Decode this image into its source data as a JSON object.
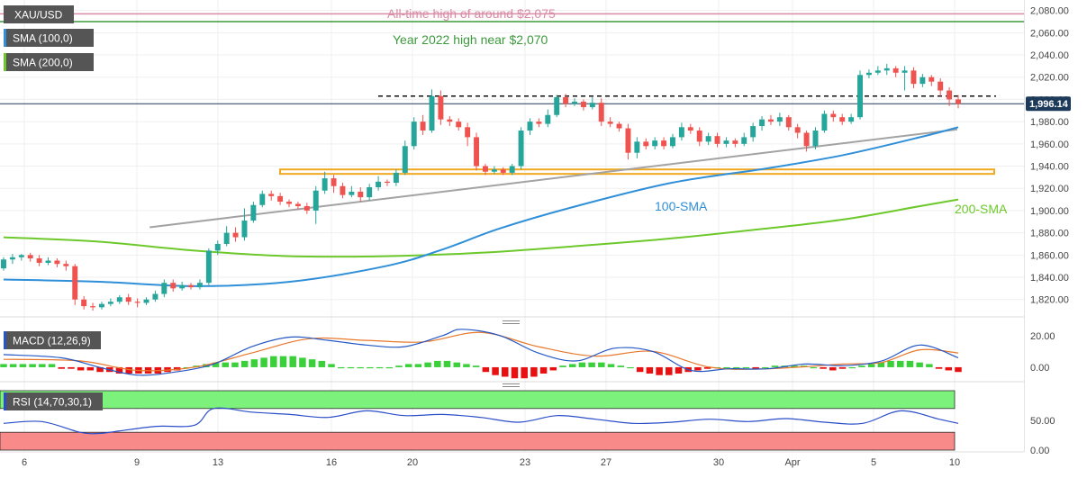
{
  "colors": {
    "up": "#26a69a",
    "down": "#ef5350",
    "sma100": "#2f8fd8",
    "sma200": "#6dc92b",
    "ath_line": "#d98aa5",
    "year_high_line": "#3c9a3c",
    "trendline": "#a3a3a3",
    "support_zone": "#f0a820",
    "macd_line": "#2457c5",
    "signal_line": "#e8782b",
    "hist_pos": "#3ad03a",
    "hist_neg": "#e81010",
    "rsi_line": "#2a4dc8",
    "rsi_overbought": "#7cf27c",
    "rsi_oversold": "#f98a8a",
    "price_badge": "#1e3a5a"
  },
  "labels": {
    "symbol": "XAU/USD",
    "sma100_legend": "SMA (100,0)",
    "sma200_legend": "SMA (200,0)",
    "macd_legend": "MACD (12,26,9)",
    "rsi_legend": "RSI (14,70,30,1)",
    "ath_note": "All-time high of around $2,075",
    "year_high_note": "Year 2022 high near $2,070",
    "sma100_note": "100-SMA",
    "sma200_note": "200-SMA",
    "last_price": "1,996.14"
  },
  "chart_data": [
    {
      "type": "candlestick",
      "symbol": "XAU/USD",
      "x_tick_labels": [
        "6",
        "9",
        "13",
        "16",
        "20",
        "23",
        "27",
        "30",
        "Apr",
        "5",
        "10"
      ],
      "y_ticks": [
        "2,080.00",
        "2,060.00",
        "2,040.00",
        "2,020.00",
        "2,000.00",
        "1,980.00",
        "1,960.00",
        "1,940.00",
        "1,920.00",
        "1,900.00",
        "1,880.00",
        "1,860.00",
        "1,840.00",
        "1,820.00"
      ],
      "ylim": [
        1806,
        2087
      ],
      "last_price": 1996.14,
      "horizontal_lines": [
        {
          "label": "All-time high of around $2,075",
          "value": 2077
        },
        {
          "label": "Year 2022 high near $2,070",
          "value": 2070
        }
      ],
      "resistance_level": 2003,
      "support_zone": [
        1933,
        1937
      ],
      "trendline": {
        "from": [
          15.3,
          1885
        ],
        "to": [
          99.9,
          1973
        ]
      },
      "candles": [
        [
          1848,
          1856,
          1846,
          1858
        ],
        [
          1856,
          1858,
          1852,
          1861
        ],
        [
          1858,
          1860,
          1855,
          1861
        ],
        [
          1860,
          1857,
          1854,
          1862
        ],
        [
          1857,
          1853,
          1850,
          1860
        ],
        [
          1853,
          1855,
          1851,
          1858
        ],
        [
          1855,
          1852,
          1849,
          1857
        ],
        [
          1852,
          1850,
          1846,
          1855
        ],
        [
          1850,
          1820,
          1815,
          1852
        ],
        [
          1820,
          1814,
          1811,
          1823
        ],
        [
          1814,
          1813,
          1810,
          1817
        ],
        [
          1813,
          1816,
          1811,
          1818
        ],
        [
          1816,
          1818,
          1814,
          1821
        ],
        [
          1818,
          1822,
          1816,
          1824
        ],
        [
          1822,
          1818,
          1815,
          1825
        ],
        [
          1818,
          1817,
          1813,
          1821
        ],
        [
          1817,
          1820,
          1815,
          1822
        ],
        [
          1820,
          1825,
          1818,
          1828
        ],
        [
          1825,
          1835,
          1822,
          1838
        ],
        [
          1835,
          1830,
          1827,
          1838
        ],
        [
          1830,
          1833,
          1828,
          1836
        ],
        [
          1833,
          1831,
          1829,
          1835
        ],
        [
          1831,
          1835,
          1829,
          1838
        ],
        [
          1835,
          1864,
          1833,
          1866
        ],
        [
          1864,
          1870,
          1860,
          1873
        ],
        [
          1870,
          1880,
          1868,
          1886
        ],
        [
          1880,
          1876,
          1872,
          1885
        ],
        [
          1876,
          1891,
          1873,
          1902
        ],
        [
          1891,
          1905,
          1889,
          1908
        ],
        [
          1905,
          1915,
          1903,
          1918
        ],
        [
          1915,
          1913,
          1909,
          1918
        ],
        [
          1913,
          1908,
          1905,
          1916
        ],
        [
          1908,
          1906,
          1903,
          1910
        ],
        [
          1906,
          1904,
          1901,
          1908
        ],
        [
          1904,
          1900,
          1897,
          1907
        ],
        [
          1900,
          1918,
          1888,
          1922
        ],
        [
          1918,
          1929,
          1915,
          1935
        ],
        [
          1929,
          1922,
          1916,
          1932
        ],
        [
          1922,
          1914,
          1911,
          1925
        ],
        [
          1914,
          1917,
          1912,
          1922
        ],
        [
          1917,
          1912,
          1908,
          1921
        ],
        [
          1912,
          1921,
          1909,
          1924
        ],
        [
          1921,
          1926,
          1918,
          1931
        ],
        [
          1926,
          1925,
          1922,
          1928
        ],
        [
          1925,
          1934,
          1922,
          1937
        ],
        [
          1934,
          1958,
          1932,
          1963
        ],
        [
          1958,
          1980,
          1955,
          1984
        ],
        [
          1980,
          1972,
          1968,
          1986
        ],
        [
          1972,
          2003,
          1970,
          2009
        ],
        [
          2003,
          1982,
          1977,
          2008
        ],
        [
          1982,
          1980,
          1976,
          1985
        ],
        [
          1980,
          1975,
          1972,
          1983
        ],
        [
          1975,
          1966,
          1958,
          1979
        ],
        [
          1966,
          1940,
          1936,
          1970
        ],
        [
          1940,
          1935,
          1932,
          1942
        ],
        [
          1935,
          1937,
          1933,
          1940
        ],
        [
          1937,
          1934,
          1932,
          1939
        ],
        [
          1934,
          1940,
          1932,
          1942
        ],
        [
          1940,
          1972,
          1937,
          1975
        ],
        [
          1972,
          1980,
          1968,
          1983
        ],
        [
          1980,
          1978,
          1975,
          1983
        ],
        [
          1978,
          1986,
          1975,
          1991
        ],
        [
          1986,
          2002,
          1984,
          2004
        ],
        [
          2002,
          1996,
          1993,
          2005
        ],
        [
          1996,
          1998,
          1994,
          2001
        ],
        [
          1998,
          1993,
          1990,
          2000
        ],
        [
          1993,
          1997,
          1991,
          2002
        ],
        [
          1997,
          1980,
          1976,
          2001
        ],
        [
          1980,
          1978,
          1975,
          1984
        ],
        [
          1978,
          1974,
          1971,
          1980
        ],
        [
          1974,
          1952,
          1946,
          1978
        ],
        [
          1952,
          1962,
          1947,
          1966
        ],
        [
          1962,
          1958,
          1955,
          1965
        ],
        [
          1958,
          1963,
          1955,
          1966
        ],
        [
          1963,
          1958,
          1955,
          1966
        ],
        [
          1958,
          1966,
          1956,
          1969
        ],
        [
          1966,
          1975,
          1963,
          1979
        ],
        [
          1975,
          1972,
          1969,
          1978
        ],
        [
          1972,
          1962,
          1958,
          1975
        ],
        [
          1962,
          1967,
          1959,
          1970
        ],
        [
          1967,
          1960,
          1957,
          1970
        ],
        [
          1960,
          1963,
          1957,
          1966
        ],
        [
          1963,
          1960,
          1957,
          1965
        ],
        [
          1960,
          1966,
          1958,
          1970
        ],
        [
          1966,
          1976,
          1962,
          1979
        ],
        [
          1976,
          1982,
          1972,
          1985
        ],
        [
          1982,
          1980,
          1977,
          1986
        ],
        [
          1980,
          1984,
          1976,
          1988
        ],
        [
          1984,
          1975,
          1972,
          1986
        ],
        [
          1975,
          1970,
          1965,
          1978
        ],
        [
          1970,
          1958,
          1953,
          1972
        ],
        [
          1958,
          1972,
          1955,
          1975
        ],
        [
          1972,
          1987,
          1970,
          1990
        ],
        [
          1987,
          1984,
          1980,
          1990
        ],
        [
          1984,
          1980,
          1977,
          1987
        ],
        [
          1980,
          1984,
          1978,
          1987
        ],
        [
          1984,
          2022,
          1982,
          2026
        ],
        [
          2022,
          2024,
          2019,
          2027
        ],
        [
          2024,
          2026,
          2022,
          2030
        ],
        [
          2026,
          2028,
          2022,
          2032
        ],
        [
          2028,
          2024,
          2020,
          2030
        ],
        [
          2024,
          2026,
          2008,
          2030
        ],
        [
          2026,
          2014,
          2010,
          2029
        ],
        [
          2014,
          2020,
          2011,
          2023
        ],
        [
          2020,
          2016,
          2012,
          2022
        ],
        [
          2016,
          2008,
          2003,
          2019
        ],
        [
          2008,
          2000,
          1994,
          2011
        ],
        [
          2000,
          1996,
          1992,
          2004
        ]
      ],
      "sma100": [
        [
          0,
          1838
        ],
        [
          10,
          1836
        ],
        [
          20,
          1832
        ],
        [
          30,
          1836
        ],
        [
          40,
          1850
        ],
        [
          46,
          1865
        ],
        [
          52,
          1884
        ],
        [
          60,
          1904
        ],
        [
          70,
          1925
        ],
        [
          80,
          1938
        ],
        [
          88,
          1950
        ],
        [
          96,
          1966
        ],
        [
          100,
          1975
        ]
      ],
      "sma200": [
        [
          0,
          1876
        ],
        [
          10,
          1872
        ],
        [
          20,
          1864
        ],
        [
          30,
          1859
        ],
        [
          40,
          1859
        ],
        [
          50,
          1862
        ],
        [
          60,
          1868
        ],
        [
          70,
          1875
        ],
        [
          80,
          1884
        ],
        [
          88,
          1892
        ],
        [
          96,
          1904
        ],
        [
          100,
          1910
        ]
      ],
      "annotations": [
        "All-time high of around $2,075",
        "Year 2022 high near $2,070",
        "100-SMA",
        "200-SMA"
      ]
    },
    {
      "type": "macd",
      "name": "MACD (12,26,9)",
      "y_ticks": [
        "20.00",
        "0.00"
      ],
      "ylim": [
        -8,
        25
      ],
      "macd": [
        [
          0,
          8
        ],
        [
          6,
          6
        ],
        [
          10,
          0
        ],
        [
          14,
          -5
        ],
        [
          18,
          -3
        ],
        [
          22,
          2
        ],
        [
          26,
          13
        ],
        [
          30,
          19
        ],
        [
          34,
          17
        ],
        [
          38,
          14
        ],
        [
          42,
          13
        ],
        [
          46,
          20
        ],
        [
          48,
          24
        ],
        [
          52,
          20
        ],
        [
          56,
          9
        ],
        [
          60,
          4
        ],
        [
          64,
          12
        ],
        [
          68,
          10
        ],
        [
          72,
          -2
        ],
        [
          76,
          -1
        ],
        [
          80,
          -1
        ],
        [
          84,
          2
        ],
        [
          88,
          1
        ],
        [
          92,
          4
        ],
        [
          96,
          14
        ],
        [
          100,
          6
        ]
      ],
      "signal": [
        [
          0,
          5
        ],
        [
          8,
          4
        ],
        [
          14,
          -2
        ],
        [
          20,
          0
        ],
        [
          26,
          9
        ],
        [
          32,
          18
        ],
        [
          38,
          17
        ],
        [
          44,
          16
        ],
        [
          50,
          22
        ],
        [
          56,
          13
        ],
        [
          62,
          7
        ],
        [
          68,
          10
        ],
        [
          74,
          0
        ],
        [
          80,
          -1
        ],
        [
          88,
          2
        ],
        [
          92,
          3
        ],
        [
          96,
          11
        ],
        [
          100,
          9
        ]
      ],
      "histogram": [
        2,
        2,
        2,
        2,
        2,
        2,
        -1,
        -1,
        -2,
        -2,
        -3,
        -3,
        -4,
        -4,
        -4,
        -4,
        -4,
        -3,
        -2,
        0,
        1,
        2,
        3,
        3,
        3,
        4,
        5,
        6,
        7,
        7,
        7,
        6,
        5,
        4,
        2,
        0,
        0,
        0,
        0,
        0,
        0,
        1,
        2,
        2,
        3,
        4,
        4,
        3,
        2,
        1,
        -3,
        -5,
        -6,
        -7,
        -7,
        -6,
        -4,
        -2,
        1,
        2,
        3,
        3,
        3,
        2,
        1,
        0,
        -3,
        -4,
        -5,
        -5,
        -4,
        -3,
        -2,
        -1,
        0,
        0,
        0,
        0,
        -1,
        0,
        1,
        1,
        1,
        1,
        0,
        -1,
        -2,
        -1,
        0,
        1,
        2,
        3,
        4,
        4,
        4,
        3,
        2,
        -1,
        -2,
        -3
      ]
    },
    {
      "type": "rsi",
      "name": "RSI (14,70,30,1)",
      "y_ticks": [
        "50.00",
        "0.00"
      ],
      "ylim": [
        0,
        100
      ],
      "overbought": 70,
      "oversold": 30,
      "rsi": [
        [
          0,
          45
        ],
        [
          4,
          48
        ],
        [
          8,
          30
        ],
        [
          10,
          28
        ],
        [
          12,
          32
        ],
        [
          16,
          40
        ],
        [
          20,
          42
        ],
        [
          22,
          70
        ],
        [
          26,
          64
        ],
        [
          30,
          60
        ],
        [
          34,
          55
        ],
        [
          38,
          66
        ],
        [
          42,
          58
        ],
        [
          46,
          60
        ],
        [
          50,
          55
        ],
        [
          54,
          47
        ],
        [
          58,
          58
        ],
        [
          62,
          52
        ],
        [
          66,
          45
        ],
        [
          70,
          47
        ],
        [
          74,
          52
        ],
        [
          78,
          48
        ],
        [
          82,
          53
        ],
        [
          86,
          47
        ],
        [
          90,
          45
        ],
        [
          94,
          66
        ],
        [
          98,
          52
        ],
        [
          100,
          45
        ]
      ]
    }
  ]
}
